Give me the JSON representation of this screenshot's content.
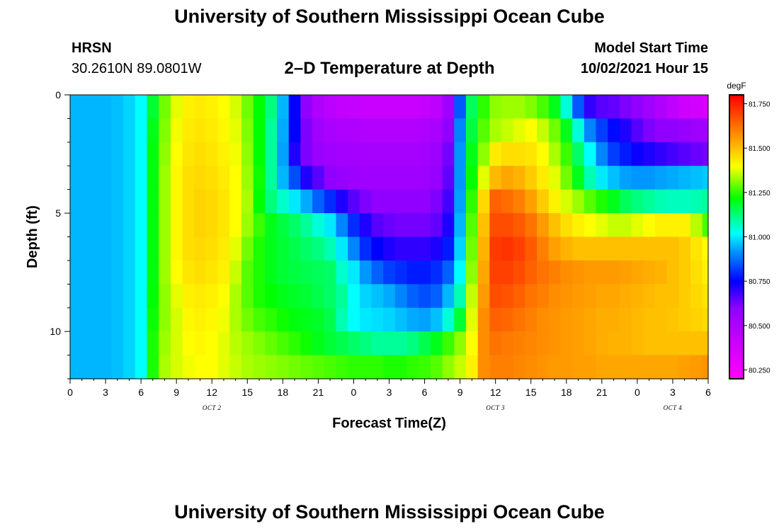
{
  "header": {
    "title": "University of Southern Mississippi Ocean Cube",
    "station_code": "HRSN",
    "station_coords": "30.2610N  89.0801W",
    "chart_subtitle": "2–D Temperature at Depth",
    "model_start_label": "Model Start Time",
    "model_start_value": "10/02/2021 Hour 15"
  },
  "footer": {
    "title": "University of Southern Mississippi Ocean Cube"
  },
  "chart_data": {
    "type": "heatmap",
    "title": "2–D Temperature at Depth",
    "xlabel": "Forecast Time(Z)",
    "ylabel": "Depth (ft)",
    "x_tick_labels": [
      "0",
      "3",
      "6",
      "9",
      "12",
      "15",
      "18",
      "21",
      "0",
      "3",
      "6",
      "9",
      "12",
      "15",
      "18",
      "21",
      "0",
      "3",
      "6"
    ],
    "x_range_hours": [
      0,
      54
    ],
    "date_labels": [
      {
        "label": "OCT 2",
        "hour": 12
      },
      {
        "label": "OCT 3",
        "hour": 36
      },
      {
        "label": "OCT 4",
        "hour": 51
      }
    ],
    "y_ticks": [
      0,
      5,
      10
    ],
    "y_range_ft": [
      0,
      12
    ],
    "colorbar": {
      "unit": "degF",
      "min": 80.2,
      "max": 81.8,
      "tick_labels": [
        "81.750",
        "81.500",
        "81.250",
        "81.000",
        "80.750",
        "80.500",
        "80.250"
      ],
      "tick_values": [
        81.75,
        81.5,
        81.25,
        81.0,
        80.75,
        80.5,
        80.25
      ]
    },
    "depth_levels_ft": [
      0.5,
      1.5,
      2.5,
      3.5,
      4.5,
      5.5,
      6.5,
      7.5,
      8.5,
      9.5,
      10.5,
      11.5
    ],
    "time_hours": [
      0,
      1,
      2,
      3,
      4,
      5,
      6,
      7,
      8,
      9,
      10,
      11,
      12,
      13,
      14,
      15,
      16,
      17,
      18,
      19,
      20,
      21,
      22,
      23,
      24,
      25,
      26,
      27,
      28,
      29,
      30,
      31,
      32,
      33,
      34,
      35,
      36,
      37,
      38,
      39,
      40,
      41,
      42,
      43,
      44,
      45,
      46,
      47,
      48,
      49,
      50,
      51,
      52,
      53,
      54
    ],
    "temperature_degF": [
      [
        80.95,
        80.95,
        80.95,
        80.95,
        80.96,
        80.98,
        81.02,
        81.18,
        81.3,
        81.38,
        81.42,
        81.43,
        81.42,
        81.4,
        81.37,
        81.3,
        81.22,
        81.12,
        80.95,
        80.75,
        80.6,
        80.5,
        80.46,
        80.44,
        80.43,
        80.42,
        80.42,
        80.42,
        80.42,
        80.42,
        80.43,
        80.45,
        80.55,
        80.85,
        81.15,
        81.25,
        81.32,
        81.33,
        81.33,
        81.31,
        81.27,
        81.2,
        81.05,
        80.85,
        80.7,
        80.66,
        80.65,
        80.62,
        80.6,
        80.55,
        80.5,
        80.45,
        80.4,
        80.38,
        80.36
      ],
      [
        80.95,
        80.95,
        80.95,
        80.95,
        80.96,
        80.98,
        81.02,
        81.2,
        81.31,
        81.39,
        81.43,
        81.44,
        81.43,
        81.41,
        81.38,
        81.31,
        81.22,
        81.1,
        80.94,
        80.75,
        80.62,
        80.55,
        80.52,
        80.5,
        80.5,
        80.49,
        80.49,
        80.49,
        80.49,
        80.49,
        80.5,
        80.52,
        80.6,
        80.9,
        81.17,
        81.28,
        81.34,
        81.36,
        81.38,
        81.4,
        81.36,
        81.3,
        81.2,
        81.05,
        80.9,
        80.82,
        80.76,
        80.72,
        80.66,
        80.62,
        80.6,
        80.6,
        80.58,
        80.56,
        80.55
      ],
      [
        80.95,
        80.95,
        80.95,
        80.95,
        80.96,
        80.98,
        81.02,
        81.21,
        81.32,
        81.4,
        81.44,
        81.45,
        81.44,
        81.42,
        81.39,
        81.32,
        81.22,
        81.1,
        80.93,
        80.72,
        80.62,
        80.57,
        80.55,
        80.54,
        80.54,
        80.53,
        80.53,
        80.53,
        80.53,
        80.53,
        80.54,
        80.56,
        80.63,
        80.92,
        81.2,
        81.32,
        81.43,
        81.45,
        81.45,
        81.44,
        81.4,
        81.34,
        81.26,
        81.14,
        81.02,
        80.9,
        80.82,
        80.78,
        80.74,
        80.72,
        80.7,
        80.68,
        80.66,
        80.64,
        80.63
      ],
      [
        80.95,
        80.95,
        80.95,
        80.95,
        80.96,
        80.98,
        81.02,
        81.21,
        81.33,
        81.41,
        81.45,
        81.46,
        81.45,
        81.43,
        81.4,
        81.33,
        81.23,
        81.1,
        80.95,
        80.84,
        80.72,
        80.66,
        80.6,
        80.58,
        80.56,
        80.55,
        80.55,
        80.55,
        80.55,
        80.55,
        80.56,
        80.58,
        80.65,
        80.92,
        81.22,
        81.38,
        81.51,
        81.54,
        81.52,
        81.48,
        81.43,
        81.38,
        81.3,
        81.2,
        81.08,
        81.0,
        80.96,
        80.93,
        80.92,
        80.92,
        80.93,
        80.94,
        80.95,
        80.96,
        80.97
      ],
      [
        80.95,
        80.95,
        80.95,
        80.95,
        80.96,
        80.98,
        81.02,
        81.21,
        81.33,
        81.41,
        81.45,
        81.47,
        81.46,
        81.44,
        81.4,
        81.34,
        81.22,
        81.12,
        81.06,
        81.0,
        80.94,
        80.86,
        80.8,
        80.72,
        80.66,
        80.62,
        80.6,
        80.6,
        80.6,
        80.6,
        80.6,
        80.62,
        80.68,
        80.93,
        81.25,
        81.46,
        81.65,
        81.63,
        81.6,
        81.55,
        81.48,
        81.42,
        81.37,
        81.33,
        81.28,
        81.24,
        81.2,
        81.15,
        81.12,
        81.1,
        81.08,
        81.07,
        81.07,
        81.08,
        81.1
      ],
      [
        80.95,
        80.95,
        80.95,
        80.95,
        80.96,
        80.98,
        81.02,
        81.21,
        81.33,
        81.41,
        81.45,
        81.47,
        81.46,
        81.44,
        81.4,
        81.33,
        81.26,
        81.2,
        81.17,
        81.14,
        81.1,
        81.05,
        81.0,
        80.9,
        80.8,
        80.72,
        80.66,
        80.64,
        80.63,
        80.63,
        80.63,
        80.65,
        80.72,
        80.95,
        81.28,
        81.5,
        81.68,
        81.68,
        81.66,
        81.62,
        81.56,
        81.5,
        81.45,
        81.42,
        81.4,
        81.38,
        81.36,
        81.36,
        81.38,
        81.4,
        81.42,
        81.42,
        81.42,
        81.35,
        81.27
      ],
      [
        80.95,
        80.95,
        80.95,
        80.95,
        80.96,
        80.98,
        81.02,
        81.21,
        81.33,
        81.41,
        81.45,
        81.46,
        81.45,
        81.43,
        81.38,
        81.3,
        81.24,
        81.2,
        81.18,
        81.16,
        81.14,
        81.12,
        81.08,
        81.0,
        80.9,
        80.8,
        80.75,
        80.72,
        80.7,
        80.7,
        80.7,
        80.72,
        80.78,
        80.98,
        81.3,
        81.52,
        81.71,
        81.72,
        81.7,
        81.66,
        81.6,
        81.55,
        81.52,
        81.5,
        81.5,
        81.5,
        81.5,
        81.5,
        81.5,
        81.5,
        81.5,
        81.5,
        81.48,
        81.44,
        81.4
      ],
      [
        80.95,
        80.95,
        80.95,
        80.95,
        80.96,
        80.98,
        81.02,
        81.21,
        81.33,
        81.4,
        81.44,
        81.45,
        81.44,
        81.42,
        81.36,
        81.28,
        81.24,
        81.2,
        81.18,
        81.17,
        81.16,
        81.15,
        81.14,
        81.06,
        81.0,
        80.92,
        80.86,
        80.82,
        80.8,
        80.78,
        80.78,
        80.8,
        80.86,
        81.02,
        81.32,
        81.54,
        81.7,
        81.7,
        81.68,
        81.65,
        81.62,
        81.6,
        81.58,
        81.57,
        81.56,
        81.56,
        81.56,
        81.55,
        81.54,
        81.53,
        81.52,
        81.5,
        81.48,
        81.45,
        81.42
      ],
      [
        80.95,
        80.95,
        80.95,
        80.95,
        80.96,
        80.98,
        81.02,
        81.22,
        81.32,
        81.38,
        81.42,
        81.43,
        81.42,
        81.4,
        81.34,
        81.28,
        81.24,
        81.22,
        81.2,
        81.19,
        81.18,
        81.16,
        81.14,
        81.1,
        81.02,
        80.98,
        80.96,
        80.94,
        80.9,
        80.86,
        80.84,
        80.86,
        80.95,
        81.08,
        81.36,
        81.56,
        81.68,
        81.67,
        81.65,
        81.62,
        81.6,
        81.58,
        81.57,
        81.56,
        81.55,
        81.54,
        81.54,
        81.53,
        81.52,
        81.51,
        81.5,
        81.5,
        81.48,
        81.46,
        81.44
      ],
      [
        80.95,
        80.95,
        80.95,
        80.95,
        80.96,
        80.98,
        81.02,
        81.23,
        81.32,
        81.37,
        81.41,
        81.42,
        81.41,
        81.39,
        81.34,
        81.3,
        81.27,
        81.25,
        81.23,
        81.21,
        81.2,
        81.19,
        81.16,
        81.08,
        81.02,
        81.0,
        80.99,
        80.98,
        80.96,
        80.94,
        80.93,
        80.96,
        81.05,
        81.18,
        81.38,
        81.58,
        81.65,
        81.64,
        81.62,
        81.6,
        81.58,
        81.57,
        81.56,
        81.55,
        81.54,
        81.53,
        81.53,
        81.52,
        81.51,
        81.5,
        81.5,
        81.49,
        81.48,
        81.47,
        81.46
      ],
      [
        80.95,
        80.95,
        80.95,
        80.95,
        80.96,
        80.98,
        81.02,
        81.24,
        81.33,
        81.37,
        81.4,
        81.41,
        81.4,
        81.38,
        81.35,
        81.33,
        81.31,
        81.29,
        81.27,
        81.25,
        81.23,
        81.2,
        81.18,
        81.16,
        81.14,
        81.12,
        81.1,
        81.1,
        81.1,
        81.12,
        81.16,
        81.2,
        81.26,
        81.32,
        81.4,
        81.58,
        81.62,
        81.61,
        81.6,
        81.59,
        81.58,
        81.57,
        81.56,
        81.55,
        81.54,
        81.53,
        81.52,
        81.52,
        81.51,
        81.5,
        81.5,
        81.5,
        81.5,
        81.5,
        81.5
      ],
      [
        80.95,
        80.95,
        80.95,
        80.95,
        80.96,
        80.98,
        81.02,
        81.24,
        81.34,
        81.37,
        81.39,
        81.4,
        81.4,
        81.38,
        81.36,
        81.34,
        81.33,
        81.32,
        81.31,
        81.3,
        81.29,
        81.28,
        81.27,
        81.26,
        81.25,
        81.25,
        81.25,
        81.24,
        81.24,
        81.25,
        81.26,
        81.28,
        81.32,
        81.36,
        81.42,
        81.58,
        81.6,
        81.6,
        81.59,
        81.58,
        81.57,
        81.56,
        81.56,
        81.55,
        81.55,
        81.54,
        81.54,
        81.54,
        81.54,
        81.54,
        81.54,
        81.54,
        81.55,
        81.56,
        81.57
      ]
    ]
  }
}
